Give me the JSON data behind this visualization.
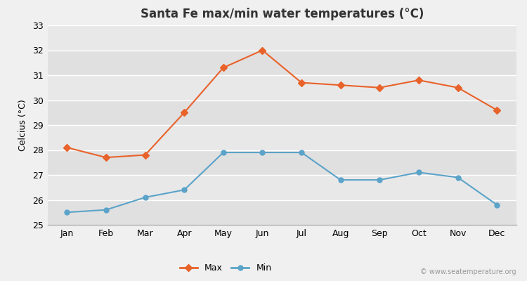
{
  "title": "Santa Fe max/min water temperatures (°C)",
  "ylabel": "Celcius (°C)",
  "months": [
    "Jan",
    "Feb",
    "Mar",
    "Apr",
    "May",
    "Jun",
    "Jul",
    "Aug",
    "Sep",
    "Oct",
    "Nov",
    "Dec"
  ],
  "max_temps": [
    28.1,
    27.7,
    27.8,
    29.5,
    31.3,
    32.0,
    30.7,
    30.6,
    30.5,
    30.8,
    30.5,
    29.6
  ],
  "min_temps": [
    25.5,
    25.6,
    26.1,
    26.4,
    27.9,
    27.9,
    27.9,
    26.8,
    26.8,
    27.1,
    26.9,
    25.8
  ],
  "ylim": [
    25,
    33
  ],
  "yticks": [
    25,
    26,
    27,
    28,
    29,
    30,
    31,
    32,
    33
  ],
  "max_color": "#e8622a",
  "min_color": "#5ba3c9",
  "fig_bg_color": "#f0f0f0",
  "plot_bg_color": "#e8e8e8",
  "band_colors": [
    "#e0e0e0",
    "#e8e8e8"
  ],
  "grid_color": "#ffffff",
  "watermark": "© www.seatemperature.org",
  "legend_labels": [
    "Max",
    "Min"
  ]
}
